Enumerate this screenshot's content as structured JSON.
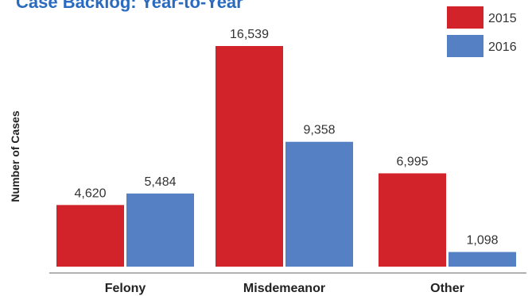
{
  "chart_data": {
    "type": "bar",
    "title": "Case Backlog: Year-to-Year",
    "ylabel": "Number of Cases",
    "xlabel": "",
    "categories": [
      "Felony",
      "Misdemeanor",
      "Other"
    ],
    "series": [
      {
        "name": "2015",
        "color": "#d2232a",
        "values": [
          4620,
          16539,
          6995
        ]
      },
      {
        "name": "2016",
        "color": "#5680c4",
        "values": [
          5484,
          9358,
          1098
        ]
      }
    ],
    "value_labels": [
      [
        "4,620",
        "16,539",
        "6,995"
      ],
      [
        "5,484",
        "9,358",
        "1,098"
      ]
    ],
    "ylim": [
      0,
      16539
    ],
    "grid": false,
    "legend": "top-right"
  }
}
